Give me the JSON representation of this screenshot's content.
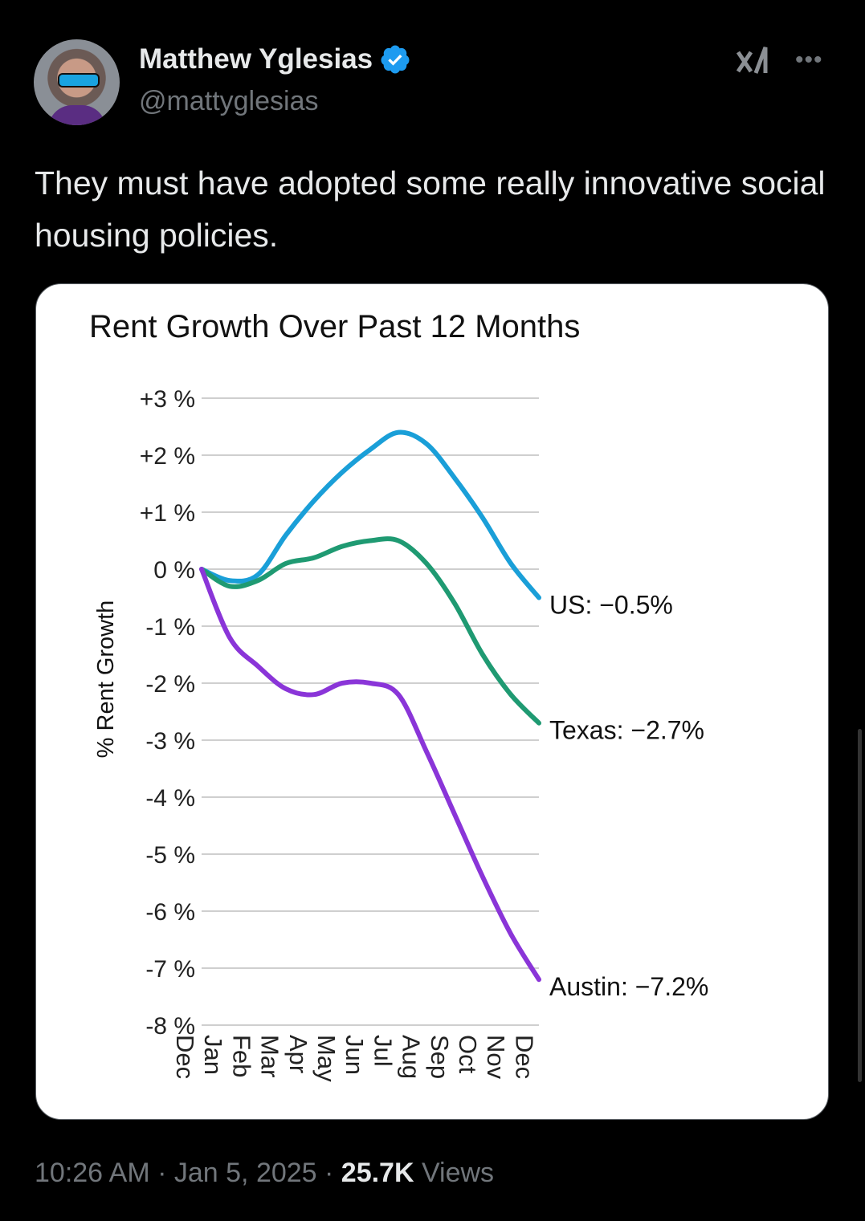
{
  "author": {
    "name": "Matthew Yglesias",
    "handle": "@mattyglesias",
    "verified": true
  },
  "header_icons": [
    "grok-icon",
    "more-icon"
  ],
  "more_label": "•••",
  "tweet_text": "They must have adopted some really innovative social housing policies.",
  "footer": {
    "time": "10:26 AM",
    "sep1": " · ",
    "date": "Jan 5, 2025",
    "sep2": " · ",
    "views_count": "25.7K",
    "views_label": " Views"
  },
  "colors": {
    "US": "#1a9fd8",
    "Texas": "#1f9a72",
    "Austin": "#8a35d8"
  },
  "chart_data": {
    "type": "line",
    "title": "Rent Growth Over Past 12 Months",
    "ylabel": "% Rent Growth",
    "xlabel": "",
    "ylim": [
      -8,
      3
    ],
    "yticks": [
      "+3 %",
      "+2 %",
      "+1 %",
      "0 %",
      "-1 %",
      "-2 %",
      "-3 %",
      "-4 %",
      "-5 %",
      "-6 %",
      "-7 %",
      "-8 %"
    ],
    "ytick_values": [
      3,
      2,
      1,
      0,
      -1,
      -2,
      -3,
      -4,
      -5,
      -6,
      -7,
      -8
    ],
    "categories": [
      "Dec",
      "Jan",
      "Feb",
      "Mar",
      "Apr",
      "May",
      "Jun",
      "Jul",
      "Aug",
      "Sep",
      "Oct",
      "Nov",
      "Dec"
    ],
    "grid": true,
    "series": [
      {
        "name": "US",
        "label": "US: −0.5%",
        "values": [
          0,
          -0.2,
          -0.1,
          0.6,
          1.2,
          1.7,
          2.1,
          2.4,
          2.2,
          1.6,
          0.9,
          0.1,
          -0.5
        ]
      },
      {
        "name": "Texas",
        "label": "Texas: −2.7%",
        "values": [
          0,
          -0.3,
          -0.2,
          0.1,
          0.2,
          0.4,
          0.5,
          0.5,
          0.1,
          -0.6,
          -1.5,
          -2.2,
          -2.7
        ]
      },
      {
        "name": "Austin",
        "label": "Austin: −7.2%",
        "values": [
          0,
          -1.2,
          -1.7,
          -2.1,
          -2.2,
          -2.0,
          -2.0,
          -2.2,
          -3.2,
          -4.3,
          -5.4,
          -6.4,
          -7.2
        ]
      }
    ]
  }
}
